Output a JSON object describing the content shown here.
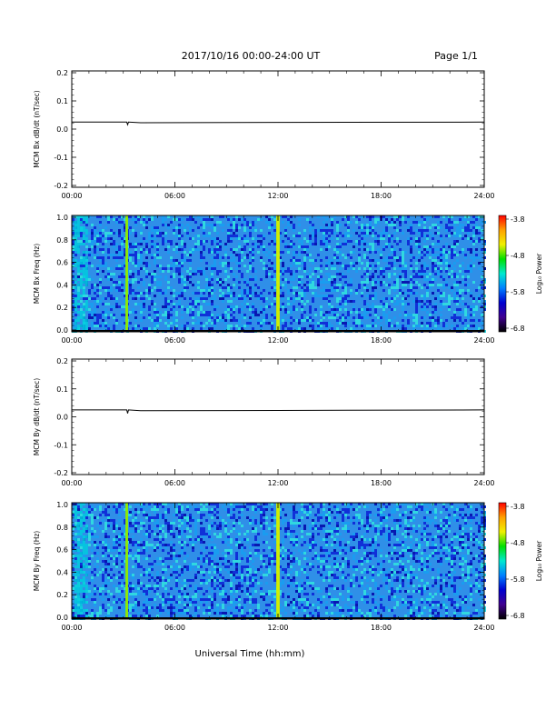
{
  "header": {
    "title": "2017/10/16  00:00-24:00 UT",
    "page": "Page 1/1"
  },
  "footer": {
    "xlabel": "Universal Time (hh:mm)"
  },
  "colors": {
    "trace": "#000000",
    "spectrogram_background": "#2f8fe8"
  },
  "colorbar": {
    "label": "Log₁₀ Power",
    "ticks": [
      "-3.8",
      "-4.8",
      "-5.8",
      "-6.8"
    ],
    "stops": [
      "#ff0000",
      "#ffa000",
      "#f0f000",
      "#00e000",
      "#00e8d0",
      "#0080ff",
      "#0000d0",
      "#400090",
      "#000000"
    ]
  },
  "chart_data": [
    {
      "type": "line",
      "ylabel": "MCM Bx dB/dt (nT/sec)",
      "xlim": [
        0,
        24
      ],
      "ylim": [
        -0.2,
        0.2
      ],
      "xticks": [
        "00:00",
        "06:00",
        "12:00",
        "18:00",
        "24:00"
      ],
      "yticks": [
        "0.2",
        "0.1",
        "0.0",
        "-0.1",
        "-0.2"
      ],
      "x": [
        0,
        3.2,
        3.25,
        3.3,
        4.0,
        12.0,
        24
      ],
      "values": [
        0.024,
        0.024,
        0.015,
        0.024,
        0.022,
        0.023,
        0.024
      ]
    },
    {
      "type": "heatmap",
      "ylabel": "MCM Bx Freq (Hz)",
      "xlim": [
        0,
        24
      ],
      "ylim": [
        0,
        1
      ],
      "xticks": [
        "00:00",
        "06:00",
        "12:00",
        "18:00",
        "24:00"
      ],
      "yticks": [
        "1.0",
        "0.8",
        "0.6",
        "0.4",
        "0.2",
        "0.0"
      ],
      "zlim": [
        -6.8,
        -3.8
      ],
      "features": [
        {
          "x": 0.5,
          "width": 0.7,
          "level": -5.4,
          "note": "broadband"
        },
        {
          "x": 3.2,
          "width": 0.15,
          "level": -4.7,
          "note": "line"
        },
        {
          "x": 12.0,
          "width": 0.2,
          "level": -4.6,
          "note": "line"
        }
      ]
    },
    {
      "type": "line",
      "ylabel": "MCM By dB/dt (nT/sec)",
      "xlim": [
        0,
        24
      ],
      "ylim": [
        -0.2,
        0.2
      ],
      "xticks": [
        "00:00",
        "06:00",
        "12:00",
        "18:00",
        "24:00"
      ],
      "yticks": [
        "0.2",
        "0.1",
        "0.0",
        "-0.1",
        "-0.2"
      ],
      "x": [
        0,
        3.2,
        3.25,
        3.3,
        4.0,
        12.0,
        24
      ],
      "values": [
        0.024,
        0.024,
        0.012,
        0.024,
        0.021,
        0.022,
        0.024
      ]
    },
    {
      "type": "heatmap",
      "ylabel": "MCM By Freq (Hz)",
      "xlim": [
        0,
        24
      ],
      "ylim": [
        0,
        1
      ],
      "xticks": [
        "00:00",
        "06:00",
        "12:00",
        "18:00",
        "24:00"
      ],
      "yticks": [
        "1.0",
        "0.8",
        "0.6",
        "0.4",
        "0.2",
        "0.0"
      ],
      "zlim": [
        -6.8,
        -3.8
      ],
      "features": [
        {
          "x": 0.5,
          "width": 0.7,
          "level": -5.4,
          "note": "broadband"
        },
        {
          "x": 3.2,
          "width": 0.15,
          "level": -4.7,
          "note": "line"
        },
        {
          "x": 12.0,
          "width": 0.2,
          "level": -4.6,
          "note": "line"
        }
      ]
    }
  ]
}
